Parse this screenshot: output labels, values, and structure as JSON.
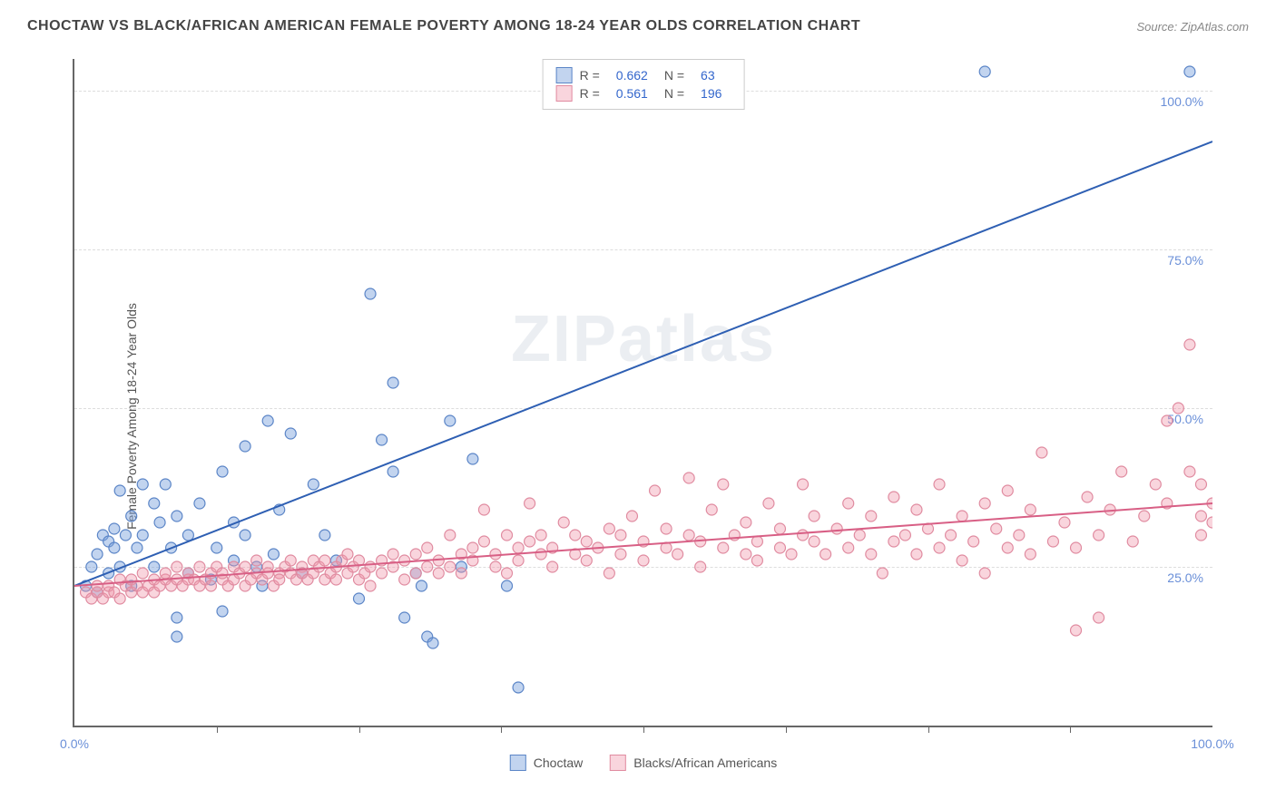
{
  "header": {
    "title": "CHOCTAW VS BLACK/AFRICAN AMERICAN FEMALE POVERTY AMONG 18-24 YEAR OLDS CORRELATION CHART",
    "source": "Source: ZipAtlas.com"
  },
  "chart": {
    "type": "scatter",
    "ylabel": "Female Poverty Among 18-24 Year Olds",
    "watermark": "ZIPatlas",
    "xlim": [
      0,
      100
    ],
    "ylim": [
      0,
      105
    ],
    "yticks": [
      {
        "v": 25,
        "label": "25.0%"
      },
      {
        "v": 50,
        "label": "50.0%"
      },
      {
        "v": 75,
        "label": "75.0%"
      },
      {
        "v": 100,
        "label": "100.0%"
      }
    ],
    "xticks_major": [
      0,
      100
    ],
    "xticks_minor": [
      12.5,
      25,
      37.5,
      50,
      62.5,
      75,
      87.5
    ],
    "xtick_labels": {
      "left": "0.0%",
      "right": "100.0%"
    },
    "grid_color": "#dddddd",
    "axis_color": "#666666",
    "background_color": "#ffffff",
    "series": [
      {
        "name": "Choctaw",
        "color_fill": "rgba(120,160,220,0.45)",
        "color_stroke": "#5b85c7",
        "line_color": "#2e5fb3",
        "R": "0.662",
        "N": "63",
        "trend": {
          "x1": 0,
          "y1": 22,
          "x2": 100,
          "y2": 92
        },
        "points": [
          [
            1,
            22
          ],
          [
            1.5,
            25
          ],
          [
            2,
            27
          ],
          [
            2,
            21
          ],
          [
            2.5,
            30
          ],
          [
            3,
            24
          ],
          [
            3,
            29
          ],
          [
            3.5,
            28
          ],
          [
            3.5,
            31
          ],
          [
            4,
            25
          ],
          [
            4,
            37
          ],
          [
            4.5,
            30
          ],
          [
            5,
            22
          ],
          [
            5,
            33
          ],
          [
            5.5,
            28
          ],
          [
            6,
            38
          ],
          [
            6,
            30
          ],
          [
            7,
            35
          ],
          [
            7,
            25
          ],
          [
            7.5,
            32
          ],
          [
            8,
            38
          ],
          [
            8.5,
            28
          ],
          [
            9,
            33
          ],
          [
            9,
            17
          ],
          [
            9,
            14
          ],
          [
            10,
            24
          ],
          [
            10,
            30
          ],
          [
            11,
            35
          ],
          [
            12,
            23
          ],
          [
            12.5,
            28
          ],
          [
            13,
            40
          ],
          [
            13,
            18
          ],
          [
            14,
            26
          ],
          [
            14,
            32
          ],
          [
            15,
            44
          ],
          [
            15,
            30
          ],
          [
            16,
            25
          ],
          [
            16.5,
            22
          ],
          [
            17,
            48
          ],
          [
            17.5,
            27
          ],
          [
            18,
            34
          ],
          [
            19,
            46
          ],
          [
            20,
            24
          ],
          [
            21,
            38
          ],
          [
            22,
            30
          ],
          [
            23,
            26
          ],
          [
            25,
            20
          ],
          [
            26,
            68
          ],
          [
            27,
            45
          ],
          [
            28,
            40
          ],
          [
            28,
            54
          ],
          [
            29,
            17
          ],
          [
            30,
            24
          ],
          [
            30.5,
            22
          ],
          [
            31,
            14
          ],
          [
            31.5,
            13
          ],
          [
            33,
            48
          ],
          [
            34,
            25
          ],
          [
            35,
            42
          ],
          [
            38,
            22
          ],
          [
            39,
            6
          ],
          [
            80,
            103
          ],
          [
            98,
            103
          ]
        ]
      },
      {
        "name": "Blacks/African Americans",
        "color_fill": "rgba(240,150,170,0.40)",
        "color_stroke": "#e08ba0",
        "line_color": "#d85f85",
        "R": "0.561",
        "N": "196",
        "trend": {
          "x1": 0,
          "y1": 22,
          "x2": 100,
          "y2": 35
        },
        "points": [
          [
            1,
            21
          ],
          [
            1.5,
            20
          ],
          [
            2,
            21
          ],
          [
            2,
            22
          ],
          [
            2.5,
            20
          ],
          [
            3,
            21
          ],
          [
            3,
            22
          ],
          [
            3.5,
            21
          ],
          [
            4,
            20
          ],
          [
            4,
            23
          ],
          [
            4.5,
            22
          ],
          [
            5,
            21
          ],
          [
            5,
            23
          ],
          [
            5.5,
            22
          ],
          [
            6,
            21
          ],
          [
            6,
            24
          ],
          [
            6.5,
            22
          ],
          [
            7,
            21
          ],
          [
            7,
            23
          ],
          [
            7.5,
            22
          ],
          [
            8,
            23
          ],
          [
            8,
            24
          ],
          [
            8.5,
            22
          ],
          [
            9,
            23
          ],
          [
            9,
            25
          ],
          [
            9.5,
            22
          ],
          [
            10,
            23
          ],
          [
            10,
            24
          ],
          [
            10.5,
            23
          ],
          [
            11,
            22
          ],
          [
            11,
            25
          ],
          [
            11.5,
            23
          ],
          [
            12,
            24
          ],
          [
            12,
            22
          ],
          [
            12.5,
            25
          ],
          [
            13,
            23
          ],
          [
            13,
            24
          ],
          [
            13.5,
            22
          ],
          [
            14,
            25
          ],
          [
            14,
            23
          ],
          [
            14.5,
            24
          ],
          [
            15,
            22
          ],
          [
            15,
            25
          ],
          [
            15.5,
            23
          ],
          [
            16,
            24
          ],
          [
            16,
            26
          ],
          [
            16.5,
            23
          ],
          [
            17,
            24
          ],
          [
            17,
            25
          ],
          [
            17.5,
            22
          ],
          [
            18,
            24
          ],
          [
            18,
            23
          ],
          [
            18.5,
            25
          ],
          [
            19,
            24
          ],
          [
            19,
            26
          ],
          [
            19.5,
            23
          ],
          [
            20,
            25
          ],
          [
            20,
            24
          ],
          [
            20.5,
            23
          ],
          [
            21,
            26
          ],
          [
            21,
            24
          ],
          [
            21.5,
            25
          ],
          [
            22,
            23
          ],
          [
            22,
            26
          ],
          [
            22.5,
            24
          ],
          [
            23,
            25
          ],
          [
            23,
            23
          ],
          [
            23.5,
            26
          ],
          [
            24,
            24
          ],
          [
            24,
            27
          ],
          [
            24.5,
            25
          ],
          [
            25,
            23
          ],
          [
            25,
            26
          ],
          [
            25.5,
            24
          ],
          [
            26,
            25
          ],
          [
            26,
            22
          ],
          [
            27,
            26
          ],
          [
            27,
            24
          ],
          [
            28,
            27
          ],
          [
            28,
            25
          ],
          [
            29,
            23
          ],
          [
            29,
            26
          ],
          [
            30,
            24
          ],
          [
            30,
            27
          ],
          [
            31,
            25
          ],
          [
            31,
            28
          ],
          [
            32,
            24
          ],
          [
            32,
            26
          ],
          [
            33,
            30
          ],
          [
            33,
            25
          ],
          [
            34,
            27
          ],
          [
            34,
            24
          ],
          [
            35,
            28
          ],
          [
            35,
            26
          ],
          [
            36,
            29
          ],
          [
            36,
            34
          ],
          [
            37,
            25
          ],
          [
            37,
            27
          ],
          [
            38,
            30
          ],
          [
            38,
            24
          ],
          [
            39,
            28
          ],
          [
            39,
            26
          ],
          [
            40,
            29
          ],
          [
            40,
            35
          ],
          [
            41,
            27
          ],
          [
            41,
            30
          ],
          [
            42,
            25
          ],
          [
            42,
            28
          ],
          [
            43,
            32
          ],
          [
            44,
            27
          ],
          [
            44,
            30
          ],
          [
            45,
            26
          ],
          [
            45,
            29
          ],
          [
            46,
            28
          ],
          [
            47,
            31
          ],
          [
            47,
            24
          ],
          [
            48,
            27
          ],
          [
            48,
            30
          ],
          [
            49,
            33
          ],
          [
            50,
            26
          ],
          [
            50,
            29
          ],
          [
            51,
            37
          ],
          [
            52,
            28
          ],
          [
            52,
            31
          ],
          [
            53,
            27
          ],
          [
            54,
            30
          ],
          [
            54,
            39
          ],
          [
            55,
            25
          ],
          [
            55,
            29
          ],
          [
            56,
            34
          ],
          [
            57,
            28
          ],
          [
            57,
            38
          ],
          [
            58,
            30
          ],
          [
            59,
            27
          ],
          [
            59,
            32
          ],
          [
            60,
            26
          ],
          [
            60,
            29
          ],
          [
            61,
            35
          ],
          [
            62,
            28
          ],
          [
            62,
            31
          ],
          [
            63,
            27
          ],
          [
            64,
            30
          ],
          [
            64,
            38
          ],
          [
            65,
            29
          ],
          [
            65,
            33
          ],
          [
            66,
            27
          ],
          [
            67,
            31
          ],
          [
            68,
            28
          ],
          [
            68,
            35
          ],
          [
            69,
            30
          ],
          [
            70,
            27
          ],
          [
            70,
            33
          ],
          [
            71,
            24
          ],
          [
            72,
            29
          ],
          [
            72,
            36
          ],
          [
            73,
            30
          ],
          [
            74,
            27
          ],
          [
            74,
            34
          ],
          [
            75,
            31
          ],
          [
            76,
            28
          ],
          [
            76,
            38
          ],
          [
            77,
            30
          ],
          [
            78,
            26
          ],
          [
            78,
            33
          ],
          [
            79,
            29
          ],
          [
            80,
            24
          ],
          [
            80,
            35
          ],
          [
            81,
            31
          ],
          [
            82,
            28
          ],
          [
            82,
            37
          ],
          [
            83,
            30
          ],
          [
            84,
            27
          ],
          [
            84,
            34
          ],
          [
            85,
            43
          ],
          [
            86,
            29
          ],
          [
            87,
            32
          ],
          [
            88,
            15
          ],
          [
            88,
            28
          ],
          [
            89,
            36
          ],
          [
            90,
            17
          ],
          [
            90,
            30
          ],
          [
            91,
            34
          ],
          [
            92,
            40
          ],
          [
            93,
            29
          ],
          [
            94,
            33
          ],
          [
            95,
            38
          ],
          [
            96,
            35
          ],
          [
            96,
            48
          ],
          [
            97,
            50
          ],
          [
            98,
            40
          ],
          [
            98,
            60
          ],
          [
            99,
            33
          ],
          [
            99,
            38
          ],
          [
            99,
            30
          ],
          [
            100,
            35
          ],
          [
            100,
            32
          ]
        ]
      }
    ],
    "legend_bottom": [
      {
        "swatch_fill": "rgba(120,160,220,0.45)",
        "swatch_stroke": "#5b85c7",
        "label": "Choctaw"
      },
      {
        "swatch_fill": "rgba(240,150,170,0.40)",
        "swatch_stroke": "#e08ba0",
        "label": "Blacks/African Americans"
      }
    ],
    "marker_radius": 6,
    "marker_stroke_width": 1.2,
    "trend_line_width": 2
  }
}
